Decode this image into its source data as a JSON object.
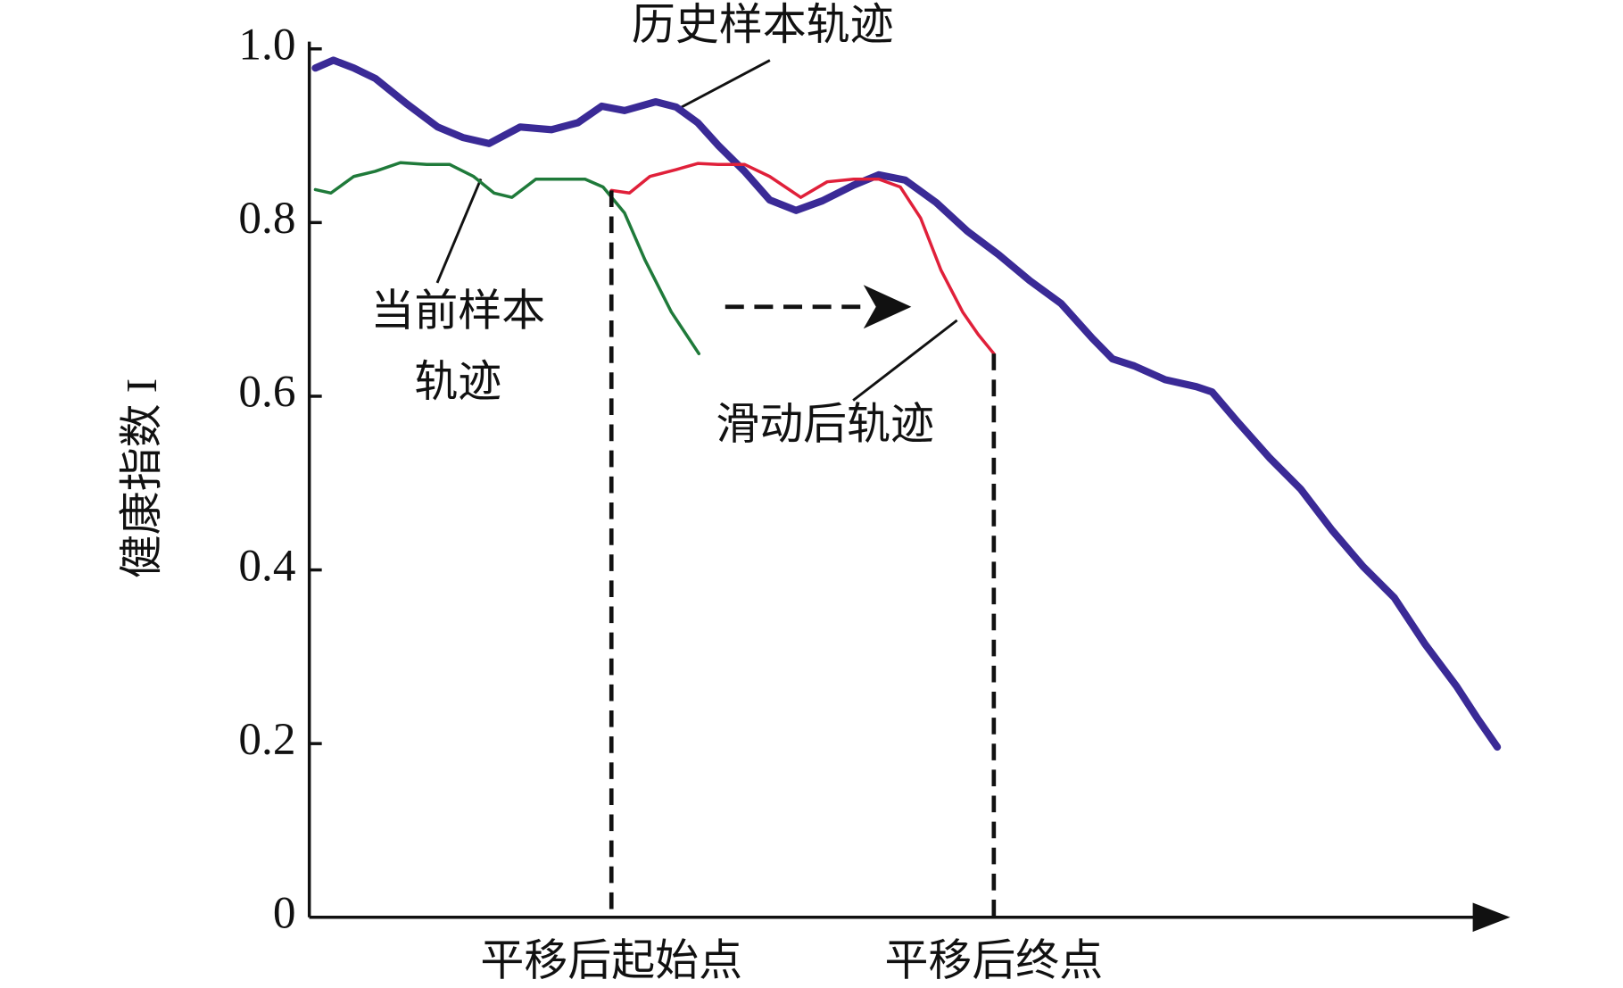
{
  "chart_data": {
    "type": "line",
    "ylabel": "健康指数 I",
    "ylim": [
      0,
      1
    ],
    "yticks": [
      0,
      0.2,
      0.4,
      0.6,
      0.8,
      {
        "value": 1,
        "label": "1.0"
      }
    ],
    "xlim": [
      0,
      100
    ],
    "series": [
      {
        "name": "历史样本轨迹",
        "color": "#3a2a96",
        "x": [
          0.5,
          2.0,
          3.7,
          5.5,
          8.1,
          10.7,
          12.8,
          15.0,
          17.6,
          20.2,
          22.4,
          24.4,
          26.3,
          28.9,
          30.6,
          32.4,
          34.1,
          36.3,
          38.4,
          40.6,
          42.8,
          45.4,
          47.5,
          49.7,
          52.3,
          54.9,
          57.5,
          60.1,
          62.7,
          65.3,
          67.0,
          68.8,
          71.4,
          74.0,
          75.3,
          77.4,
          80.1,
          82.7,
          85.3,
          87.9,
          90.5,
          93.1,
          95.7,
          97.4,
          99.1
        ],
        "values": [
          0.978,
          0.987,
          0.978,
          0.966,
          0.937,
          0.91,
          0.898,
          0.891,
          0.91,
          0.907,
          0.915,
          0.934,
          0.929,
          0.939,
          0.933,
          0.915,
          0.889,
          0.859,
          0.826,
          0.814,
          0.825,
          0.843,
          0.855,
          0.849,
          0.823,
          0.79,
          0.763,
          0.733,
          0.707,
          0.667,
          0.643,
          0.635,
          0.619,
          0.611,
          0.605,
          0.571,
          0.529,
          0.493,
          0.446,
          0.404,
          0.368,
          0.314,
          0.266,
          0.23,
          0.196
        ]
      },
      {
        "name": "当前样本轨迹",
        "color": "#1f7a3a",
        "x": [
          0.5,
          1.8,
          3.7,
          5.5,
          7.6,
          9.8,
          11.7,
          13.7,
          15.4,
          16.9,
          18.9,
          21.1,
          23.0,
          24.5,
          26.3,
          28.0,
          30.2,
          32.5
        ],
        "values": [
          0.838,
          0.834,
          0.853,
          0.859,
          0.869,
          0.867,
          0.867,
          0.853,
          0.834,
          0.829,
          0.85,
          0.85,
          0.85,
          0.841,
          0.811,
          0.757,
          0.697,
          0.649
        ]
      },
      {
        "name": "滑动后轨迹",
        "color": "#e0203a",
        "x": [
          25.2,
          26.7,
          28.4,
          30.6,
          32.4,
          34.1,
          36.3,
          38.4,
          41.0,
          43.2,
          45.4,
          47.5,
          49.3,
          51.0,
          52.7,
          54.5,
          55.8,
          57.1
        ],
        "values": [
          0.837,
          0.834,
          0.853,
          0.861,
          0.868,
          0.867,
          0.867,
          0.853,
          0.829,
          0.847,
          0.85,
          0.85,
          0.841,
          0.805,
          0.745,
          0.697,
          0.671,
          0.649
        ]
      }
    ],
    "annotations": [
      {
        "text": "平移后起始点",
        "x": 25.2
      },
      {
        "text": "平移后终点",
        "x": 57.1
      }
    ]
  }
}
